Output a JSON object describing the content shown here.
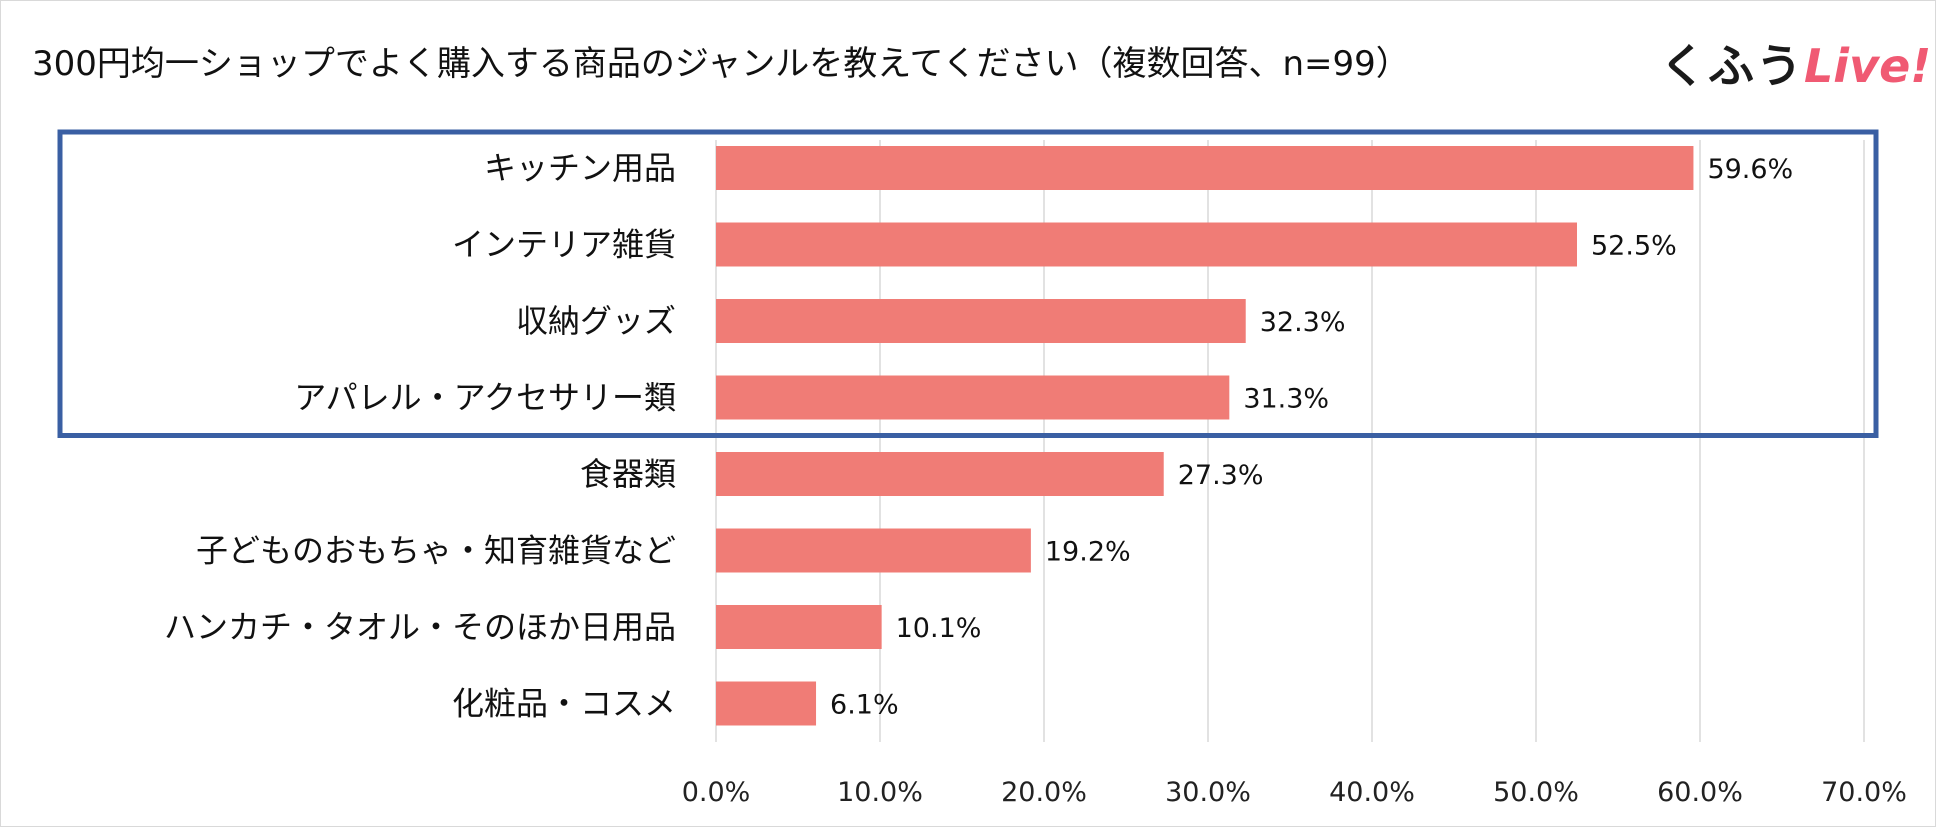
{
  "title": "300円均一ショップでよく購入する商品のジャンルを教えてください（複数回答、n=99）",
  "logo": {
    "text_main": "くふう",
    "text_accent": "Live!",
    "main_color": "#1a1a1a",
    "accent_color": "#f05a73"
  },
  "chart_data": {
    "type": "bar",
    "orientation": "horizontal",
    "categories": [
      "キッチン用品",
      "インテリア雑貨",
      "収納グッズ",
      "アパレル・アクセサリー類",
      "食器類",
      "子どものおもちゃ・知育雑貨など",
      "ハンカチ・タオル・そのほか日用品",
      "化粧品・コスメ"
    ],
    "values": [
      59.6,
      52.5,
      32.3,
      31.3,
      27.3,
      19.2,
      10.1,
      6.1
    ],
    "value_labels": [
      "59.6%",
      "52.5%",
      "32.3%",
      "31.3%",
      "27.3%",
      "19.2%",
      "10.1%",
      "6.1%"
    ],
    "xlim": [
      0,
      70
    ],
    "xticks": [
      "0.0%",
      "10.0%",
      "20.0%",
      "30.0%",
      "40.0%",
      "50.0%",
      "60.0%",
      "70.0%"
    ],
    "grid": "vertical",
    "bar_color": "#f07c76",
    "grid_color": "#d9d9d9",
    "highlight": {
      "categories": [
        "キッチン用品",
        "インテリア雑貨",
        "収納グッズ",
        "アパレル・アクセサリー類"
      ],
      "border_color": "#3a5fa3"
    }
  }
}
